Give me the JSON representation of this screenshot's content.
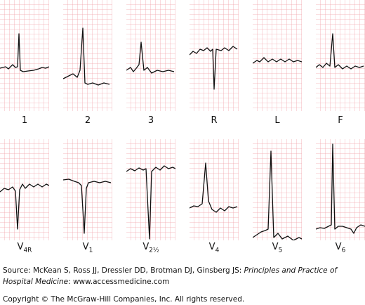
{
  "leads": [
    {
      "main": "1"
    },
    {
      "main": "2"
    },
    {
      "main": "3"
    },
    {
      "main": "R"
    },
    {
      "main": "L"
    },
    {
      "main": "F"
    },
    {
      "main": "V",
      "sub": "4R"
    },
    {
      "main": "V",
      "sub": "1"
    },
    {
      "main": "V",
      "sub": "2½"
    },
    {
      "main": "V",
      "sub": "4"
    },
    {
      "main": "V",
      "sub": "5"
    },
    {
      "main": "V",
      "sub": "6"
    }
  ],
  "source": {
    "prefix": "Source: McKean S, Ross JJ, Dressler DD, Brotman DJ, Ginsberg JS: ",
    "title": "Principles and Practice of Hospital Medicine",
    "suffix": ": www.accessmedicine.com"
  },
  "copyright": "Copyright © The McGraw-Hill Companies, Inc. All rights reserved."
}
